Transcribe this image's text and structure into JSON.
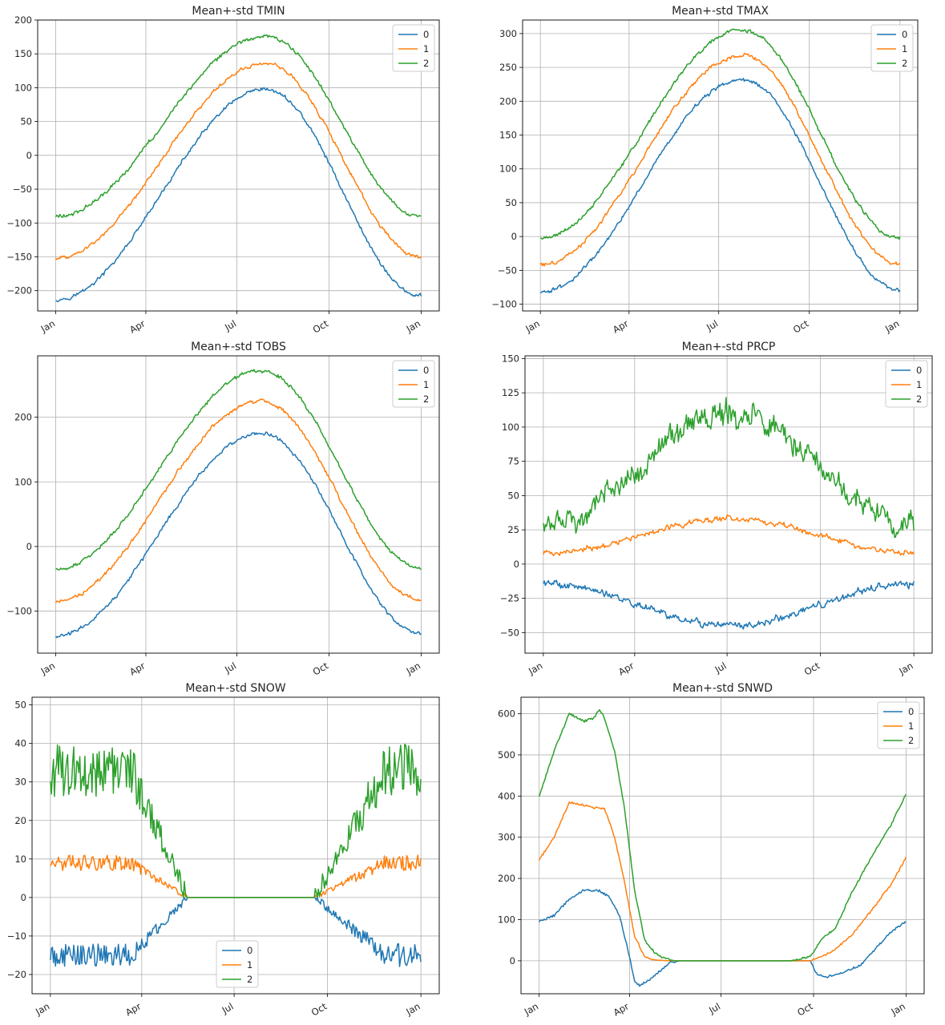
{
  "colors": [
    "#1f77b4",
    "#ff7f0e",
    "#2ca02c"
  ],
  "chart_data": [
    {
      "type": "line",
      "title": "Mean+-std   TMIN",
      "x_tick_labels": [
        "Jan",
        "Apr",
        "Jul",
        "Oct",
        "Jan"
      ],
      "ylim": [
        -230,
        200
      ],
      "y_ticks": [
        -200,
        -150,
        -100,
        -50,
        0,
        50,
        100,
        150,
        200
      ],
      "grid": true,
      "legend_position": "upper right",
      "series": [
        {
          "name": "0",
          "color": "#1f77b4",
          "shape": "bell",
          "start": -213,
          "peak": 97,
          "end": -208,
          "peak_day": 210,
          "noise": 4
        },
        {
          "name": "1",
          "color": "#ff7f0e",
          "shape": "bell",
          "start": -152,
          "peak": 136,
          "end": -150,
          "peak_day": 210,
          "noise": 4
        },
        {
          "name": "2",
          "color": "#2ca02c",
          "shape": "bell",
          "start": -90,
          "peak": 176,
          "end": -90,
          "peak_day": 210,
          "noise": 4
        }
      ]
    },
    {
      "type": "line",
      "title": "Mean+-std   TMAX",
      "x_tick_labels": [
        "Jan",
        "Apr",
        "Jul",
        "Oct",
        "Jan"
      ],
      "ylim": [
        -110,
        320
      ],
      "y_ticks": [
        -100,
        -50,
        0,
        50,
        100,
        150,
        200,
        250,
        300
      ],
      "grid": true,
      "legend_position": "upper right",
      "series": [
        {
          "name": "0",
          "color": "#1f77b4",
          "shape": "bell",
          "start": -82,
          "peak": 232,
          "end": -80,
          "peak_day": 205,
          "noise": 4
        },
        {
          "name": "1",
          "color": "#ff7f0e",
          "shape": "bell",
          "start": -42,
          "peak": 268,
          "end": -40,
          "peak_day": 205,
          "noise": 4
        },
        {
          "name": "2",
          "color": "#2ca02c",
          "shape": "bell",
          "start": -2,
          "peak": 305,
          "end": -2,
          "peak_day": 205,
          "noise": 4
        }
      ]
    },
    {
      "type": "line",
      "title": "Mean+-std   TOBS",
      "x_tick_labels": [
        "Jan",
        "Apr",
        "Jul",
        "Oct",
        "Jan"
      ],
      "ylim": [
        -165,
        295
      ],
      "y_ticks": [
        -100,
        0,
        100,
        200
      ],
      "grid": true,
      "legend_position": "upper right",
      "series": [
        {
          "name": "0",
          "color": "#1f77b4",
          "shape": "bell",
          "start": -138,
          "peak": 175,
          "end": -135,
          "peak_day": 205,
          "noise": 4
        },
        {
          "name": "1",
          "color": "#ff7f0e",
          "shape": "bell",
          "start": -85,
          "peak": 225,
          "end": -83,
          "peak_day": 205,
          "noise": 4
        },
        {
          "name": "2",
          "color": "#2ca02c",
          "shape": "bell",
          "start": -35,
          "peak": 272,
          "end": -33,
          "peak_day": 205,
          "noise": 4
        }
      ]
    },
    {
      "type": "line",
      "title": "Mean+-std   PRCP",
      "x_tick_labels": [
        "Jan",
        "Apr",
        "Jul",
        "Oct",
        "Jan"
      ],
      "ylim": [
        -65,
        152
      ],
      "y_ticks": [
        -50,
        -25,
        0,
        25,
        50,
        75,
        100,
        125,
        150
      ],
      "grid": true,
      "legend_position": "upper right",
      "series": [
        {
          "name": "0",
          "color": "#1f77b4",
          "shape": "bell",
          "start": -14,
          "peak": -45,
          "end": -14,
          "peak_day": 185,
          "noise": 4
        },
        {
          "name": "1",
          "color": "#ff7f0e",
          "shape": "bell",
          "start": 8,
          "peak": 33,
          "end": 8,
          "peak_day": 185,
          "noise": 3
        },
        {
          "name": "2",
          "color": "#2ca02c",
          "shape": "bell",
          "start": 28,
          "peak": 110,
          "end": 30,
          "peak_day": 185,
          "noise": 13
        }
      ]
    },
    {
      "type": "line",
      "title": "Mean+-std   SNOW",
      "x_tick_labels": [
        "Jan",
        "Apr",
        "Jul",
        "Oct",
        "Jan"
      ],
      "ylim": [
        -25,
        52
      ],
      "y_ticks": [
        -20,
        -10,
        0,
        10,
        20,
        30,
        40,
        50
      ],
      "grid": true,
      "legend_position": "lower center",
      "series": [
        {
          "name": "0",
          "color": "#1f77b4",
          "shape": "winter",
          "winter_level": -15,
          "end": 135,
          "start": 260,
          "noise": 3
        },
        {
          "name": "1",
          "color": "#ff7f0e",
          "shape": "winter",
          "winter_level": 9,
          "end": 135,
          "start": 260,
          "noise": 2
        },
        {
          "name": "2",
          "color": "#2ca02c",
          "shape": "winter",
          "winter_level": 33,
          "end": 135,
          "start": 260,
          "noise": 7
        }
      ]
    },
    {
      "type": "line",
      "title": "Mean+-std   SNWD",
      "x_tick_labels": [
        "Jan",
        "Apr",
        "Jul",
        "Oct",
        "Jan"
      ],
      "ylim": [
        -80,
        640
      ],
      "y_ticks": [
        0,
        100,
        200,
        300,
        400,
        500,
        600
      ],
      "grid": true,
      "legend_position": "upper right",
      "series": [
        {
          "name": "0",
          "color": "#1f77b4",
          "shape": "points",
          "points": [
            [
              0,
              95
            ],
            [
              15,
              110
            ],
            [
              30,
              150
            ],
            [
              45,
              172
            ],
            [
              60,
              170
            ],
            [
              70,
              155
            ],
            [
              80,
              110
            ],
            [
              90,
              10
            ],
            [
              95,
              -50
            ],
            [
              100,
              -60
            ],
            [
              110,
              -45
            ],
            [
              120,
              -25
            ],
            [
              130,
              -5
            ],
            [
              140,
              0
            ],
            [
              250,
              0
            ],
            [
              270,
              0
            ],
            [
              275,
              -30
            ],
            [
              285,
              -40
            ],
            [
              300,
              -30
            ],
            [
              320,
              -10
            ],
            [
              335,
              30
            ],
            [
              350,
              70
            ],
            [
              365,
              95
            ]
          ]
        },
        {
          "name": "1",
          "color": "#ff7f0e",
          "shape": "points",
          "points": [
            [
              0,
              245
            ],
            [
              15,
              300
            ],
            [
              30,
              385
            ],
            [
              45,
              378
            ],
            [
              55,
              372
            ],
            [
              65,
              370
            ],
            [
              75,
              300
            ],
            [
              85,
              190
            ],
            [
              95,
              60
            ],
            [
              105,
              10
            ],
            [
              115,
              2
            ],
            [
              130,
              0
            ],
            [
              250,
              0
            ],
            [
              270,
              0
            ],
            [
              290,
              20
            ],
            [
              310,
              60
            ],
            [
              330,
              120
            ],
            [
              350,
              185
            ],
            [
              365,
              250
            ]
          ]
        },
        {
          "name": "2",
          "color": "#2ca02c",
          "shape": "points",
          "points": [
            [
              0,
              400
            ],
            [
              15,
              510
            ],
            [
              30,
              600
            ],
            [
              45,
              582
            ],
            [
              55,
              590
            ],
            [
              60,
              612
            ],
            [
              65,
              590
            ],
            [
              75,
              510
            ],
            [
              85,
              370
            ],
            [
              95,
              170
            ],
            [
              105,
              50
            ],
            [
              115,
              20
            ],
            [
              125,
              5
            ],
            [
              135,
              0
            ],
            [
              250,
              0
            ],
            [
              270,
              10
            ],
            [
              280,
              50
            ],
            [
              295,
              80
            ],
            [
              310,
              160
            ],
            [
              330,
              250
            ],
            [
              350,
              330
            ],
            [
              365,
              405
            ]
          ]
        }
      ]
    }
  ]
}
